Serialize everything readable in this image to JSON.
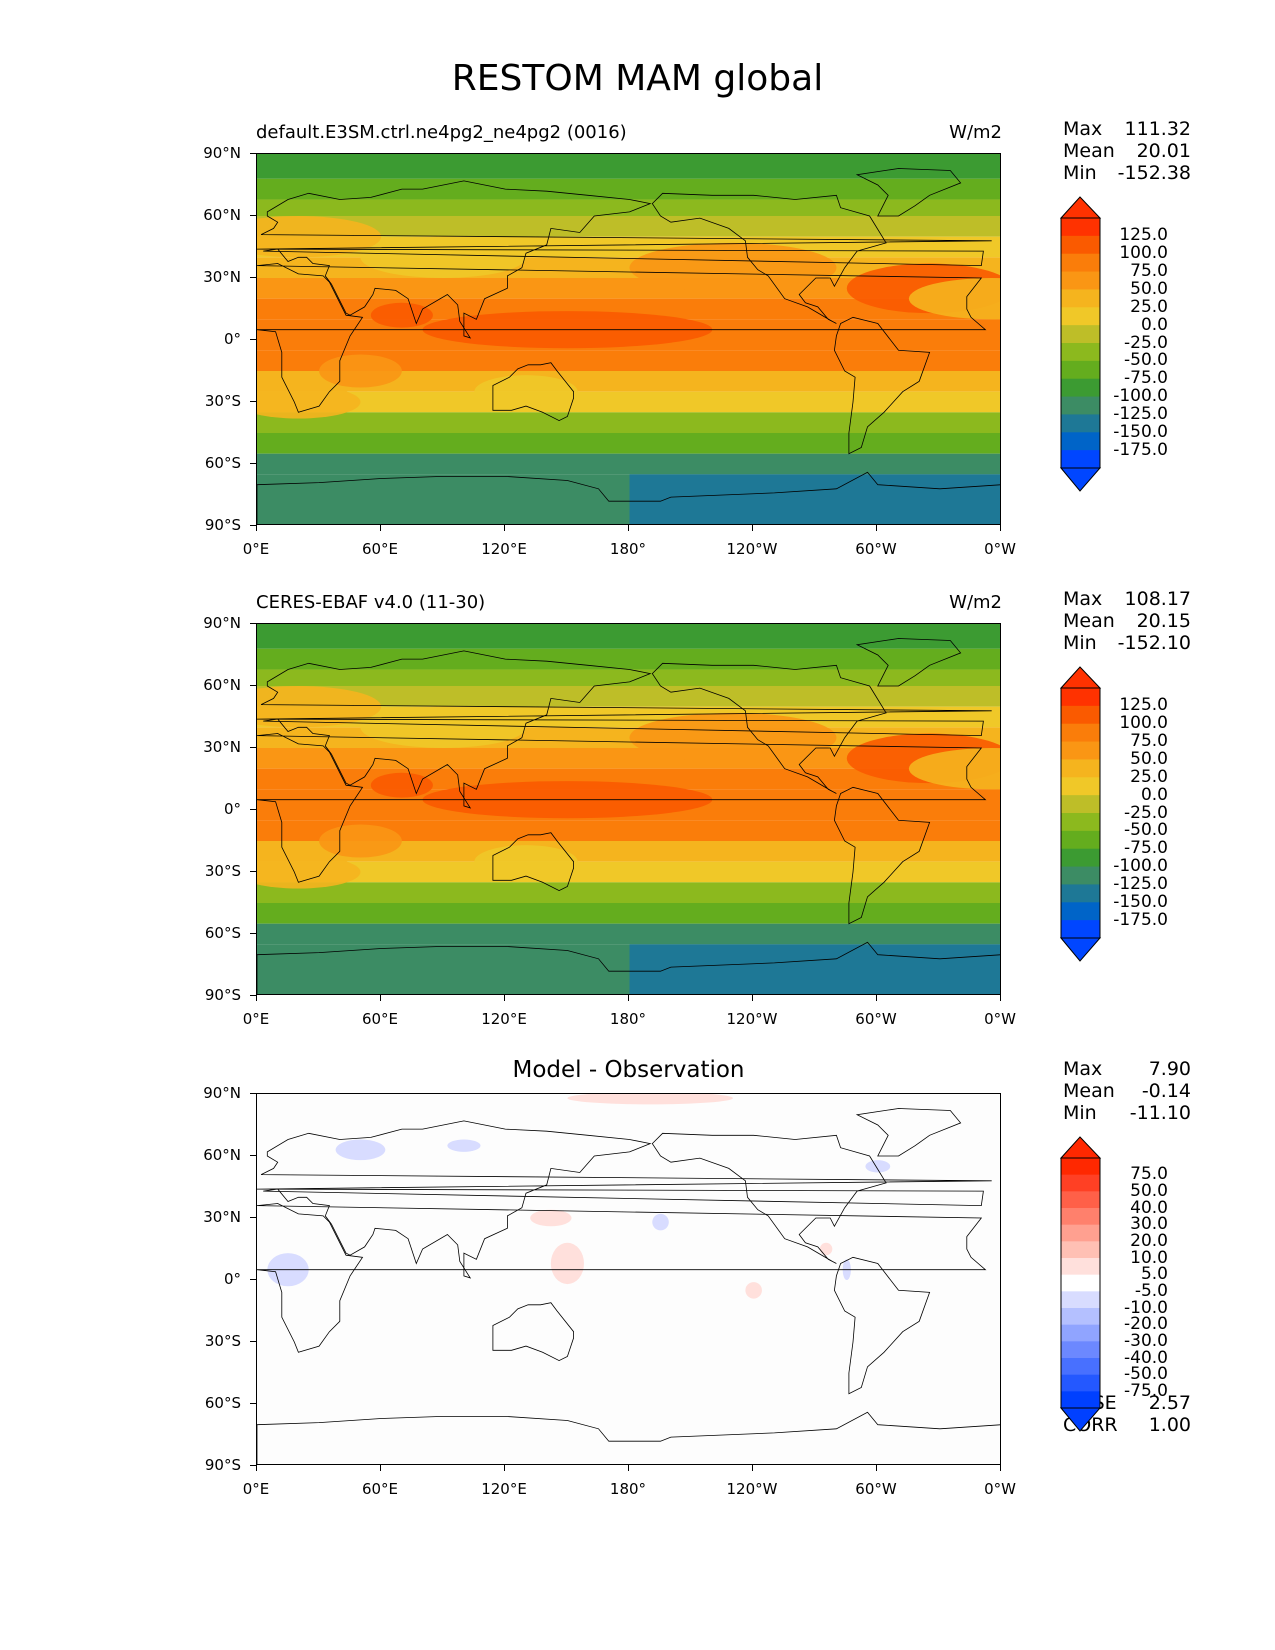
{
  "figure": {
    "title": "RESTOM MAM global"
  },
  "axes": {
    "lat_labels": [
      "90°N",
      "60°N",
      "30°N",
      "0°",
      "30°S",
      "60°S",
      "90°S"
    ],
    "lon_labels": [
      "0°E",
      "60°E",
      "120°E",
      "180°",
      "120°W",
      "60°W",
      "0°W"
    ]
  },
  "panels": [
    {
      "left_title": "default.E3SM.ctrl.ne4pg2_ne4pg2 (0016)",
      "right_title": "W/m2",
      "center_title": "",
      "stats": {
        "max_label": "Max",
        "max": "111.32",
        "mean_label": "Mean",
        "mean": "20.01",
        "min_label": "Min",
        "min": "-152.38"
      },
      "colorbar_labels": [
        "125.0",
        "100.0",
        "75.0",
        "50.0",
        "25.0",
        "0.0",
        "-25.0",
        "-50.0",
        "-75.0",
        "-100.0",
        "-125.0",
        "-150.0",
        "-175.0"
      ]
    },
    {
      "left_title": "CERES-EBAF v4.0 (11-30)",
      "right_title": "W/m2",
      "center_title": "",
      "stats": {
        "max_label": "Max",
        "max": "108.17",
        "mean_label": "Mean",
        "mean": "20.15",
        "min_label": "Min",
        "min": "-152.10"
      },
      "colorbar_labels": [
        "125.0",
        "100.0",
        "75.0",
        "50.0",
        "25.0",
        "0.0",
        "-25.0",
        "-50.0",
        "-75.0",
        "-100.0",
        "-125.0",
        "-150.0",
        "-175.0"
      ]
    },
    {
      "left_title": "",
      "right_title": "",
      "center_title": "Model - Observation",
      "stats": {
        "max_label": "Max",
        "max": "7.90",
        "mean_label": "Mean",
        "mean": "-0.14",
        "min_label": "Min",
        "min": "-11.10"
      },
      "colorbar_labels": [
        "75.0",
        "50.0",
        "40.0",
        "30.0",
        "20.0",
        "10.0",
        "5.0",
        "-5.0",
        "-10.0",
        "-20.0",
        "-30.0",
        "-40.0",
        "-50.0",
        "-75.0"
      ],
      "rmse_label": "RMSE",
      "rmse": "2.57",
      "corr_label": "CORR",
      "corr": "1.00"
    }
  ],
  "colors": {
    "abs_scale": [
      "#0046ff",
      "#0064c8",
      "#1e7896",
      "#3c8c64",
      "#3c9b32",
      "#64ad1e",
      "#8cb91e",
      "#bebe28",
      "#f0c828",
      "#f5b41e",
      "#fa9614",
      "#fa7d0a",
      "#fa5a00",
      "#ff3200"
    ],
    "diff_scale": [
      "#0040ff",
      "#2458ff",
      "#4870ff",
      "#6c88ff",
      "#90a4ff",
      "#b4c0ff",
      "#d8dcff",
      "#ffffff",
      "#ffe0dc",
      "#ffc0b4",
      "#ffa090",
      "#ff806c",
      "#ff6048",
      "#ff4024",
      "#ff2800"
    ]
  }
}
